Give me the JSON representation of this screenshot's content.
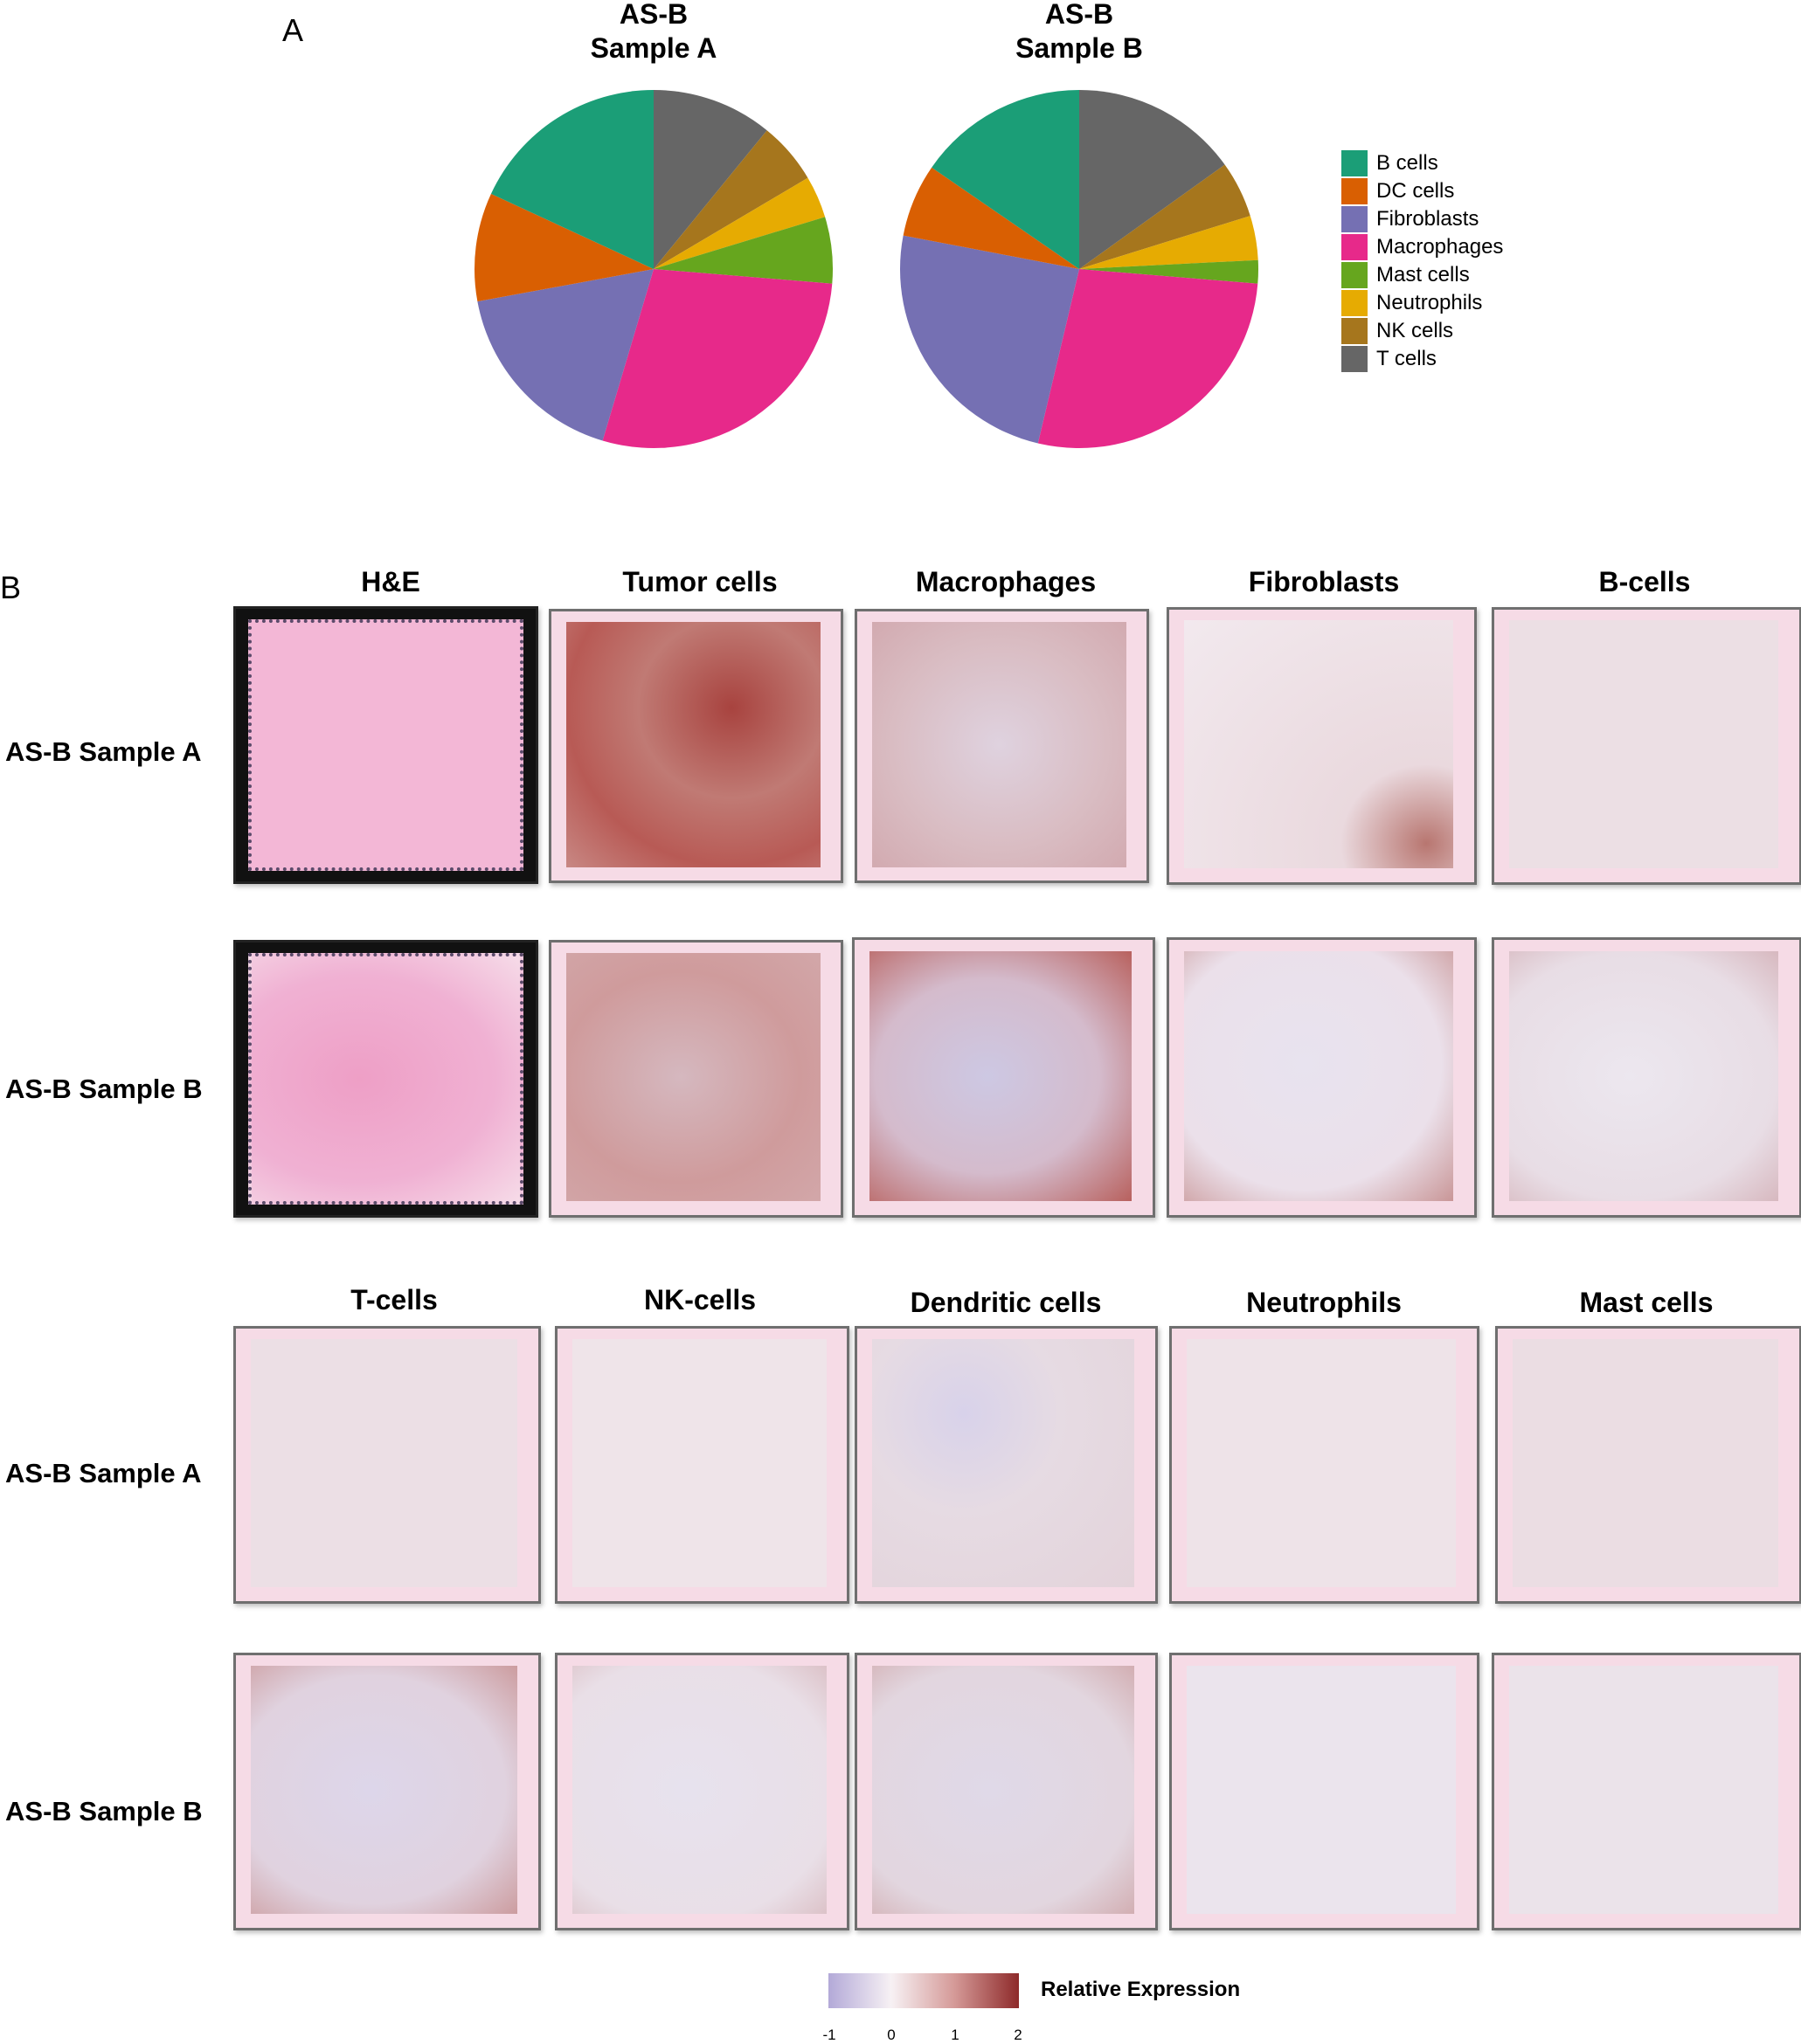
{
  "panel_a": {
    "label": "A",
    "legend": [
      {
        "name": "B cells",
        "color": "#1b9e77"
      },
      {
        "name": "DC cells",
        "color": "#d95f02"
      },
      {
        "name": "Fibroblasts",
        "color": "#7570b3"
      },
      {
        "name": "Macrophages",
        "color": "#e7298a"
      },
      {
        "name": "Mast cells",
        "color": "#66a61e"
      },
      {
        "name": "Neutrophils",
        "color": "#e6ab02"
      },
      {
        "name": "NK cells",
        "color": "#a6761d"
      },
      {
        "name": "T cells",
        "color": "#666666"
      }
    ]
  },
  "chart_data": [
    {
      "type": "pie",
      "title": "AS-B\nSample A",
      "title_lines": [
        "AS-B",
        "Sample A"
      ],
      "labels": [
        "T cells",
        "NK cells",
        "Neutrophils",
        "Mast cells",
        "Macrophages",
        "Fibroblasts",
        "DC cells",
        "B cells"
      ],
      "values": [
        10.9,
        5.6,
        3.8,
        6.0,
        28.3,
        17.5,
        9.8,
        18.1
      ],
      "colors": [
        "#666666",
        "#a6761d",
        "#e6ab02",
        "#66a61e",
        "#e7298a",
        "#7570b3",
        "#d95f02",
        "#1b9e77"
      ],
      "start": "12 o'clock, clockwise",
      "legend_position": "right"
    },
    {
      "type": "pie",
      "title": "AS-B\nSample B",
      "title_lines": [
        "AS-B",
        "Sample B"
      ],
      "labels": [
        "T cells",
        "NK cells",
        "Neutrophils",
        "Mast cells",
        "Macrophages",
        "Fibroblasts",
        "DC cells",
        "B cells"
      ],
      "values": [
        15.1,
        5.1,
        4.0,
        2.1,
        27.4,
        24.3,
        6.6,
        15.4
      ],
      "colors": [
        "#666666",
        "#a6761d",
        "#e6ab02",
        "#66a61e",
        "#e7298a",
        "#7570b3",
        "#d95f02",
        "#1b9e77"
      ],
      "start": "12 o'clock, clockwise",
      "legend_position": "right"
    }
  ],
  "panel_b": {
    "label": "B",
    "groups": [
      {
        "columns": [
          "H&E",
          "Tumor cells",
          "Macrophages",
          "Fibroblasts",
          "B-cells"
        ],
        "rows": [
          "AS-B Sample A",
          "AS-B Sample B"
        ]
      },
      {
        "columns": [
          "T-cells",
          "NK-cells",
          "Dendritic cells",
          "Neutrophils",
          "Mast cells"
        ],
        "rows": [
          "AS-B Sample A",
          "AS-B Sample B"
        ]
      }
    ],
    "colorbar": {
      "title": "Relative Expression",
      "ticks": [
        "-1",
        "0",
        "1",
        "2"
      ],
      "low_color": "#b3a9d8",
      "mid_color": "#f7f1f4",
      "high_color": "#8e2a2a"
    }
  }
}
